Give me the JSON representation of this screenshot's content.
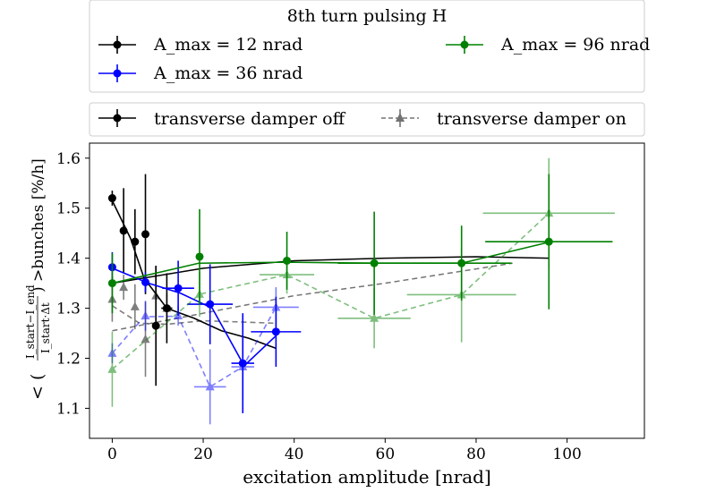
{
  "chart_data": {
    "type": "scatter",
    "xlabel": "excitation amplitude [nrad]",
    "ylabel_main": "< (",
    "ylabel_frac_num": "I_start−I_end",
    "ylabel_frac_den": "I_start·Δt",
    "ylabel_tail": ") >bunches [%/h]",
    "xlim": [
      -5,
      117
    ],
    "ylim": [
      1.04,
      1.63
    ],
    "xticks": [
      0,
      20,
      40,
      60,
      80,
      100
    ],
    "yticks": [
      1.1,
      1.2,
      1.3,
      1.4,
      1.5,
      1.6
    ],
    "xtick_labels": [
      "0",
      "20",
      "40",
      "60",
      "80",
      "100"
    ],
    "ytick_labels": [
      "1.1",
      "1.2",
      "1.3",
      "1.4",
      "1.5",
      "1.6"
    ],
    "legend1": {
      "title": "8th turn pulsing H",
      "entries": [
        "A_max = 12 nrad",
        "A_max = 36 nrad",
        "A_max = 96 nrad"
      ]
    },
    "legend2": {
      "entries": [
        "transverse damper off",
        "transverse damper on"
      ]
    },
    "series": [
      {
        "name": "A_max = 12 nrad",
        "color": "#000000",
        "damper": "off",
        "points": [
          {
            "x": 0,
            "y": 1.52,
            "xerr": 0,
            "yerr": 0.015
          },
          {
            "x": 2.5,
            "y": 1.455,
            "xerr": 0,
            "yerr": 0.085
          },
          {
            "x": 5,
            "y": 1.433,
            "xerr": 0,
            "yerr": 0.065
          },
          {
            "x": 7.3,
            "y": 1.448,
            "xerr": 0,
            "yerr": 0.12
          },
          {
            "x": 9.6,
            "y": 1.265,
            "xerr": 0,
            "yerr": 0.12
          },
          {
            "x": 12,
            "y": 1.3,
            "xerr": 1.2,
            "yerr": 0.07
          }
        ],
        "fit": [
          [
            0,
            1.515
          ],
          [
            4,
            1.44
          ],
          [
            7,
            1.36
          ],
          [
            12,
            1.3
          ],
          [
            18,
            1.28
          ],
          [
            24,
            1.255
          ],
          [
            30,
            1.24
          ],
          [
            36,
            1.22
          ]
        ]
      },
      {
        "name": "A_max = 12 nrad",
        "color": "#000000",
        "damper": "on",
        "points": [
          {
            "x": 0,
            "y": 1.318,
            "xerr": 0,
            "yerr": 0.045
          },
          {
            "x": 2.5,
            "y": 1.342,
            "xerr": 0,
            "yerr": 0.025
          },
          {
            "x": 5,
            "y": 1.303,
            "xerr": 0,
            "yerr": 0.045
          },
          {
            "x": 7.3,
            "y": 1.238,
            "xerr": 0,
            "yerr": 0.075
          },
          {
            "x": 9.6,
            "y": 1.325,
            "xerr": 0,
            "yerr": 0.06
          },
          {
            "x": 12,
            "y": 1.3,
            "xerr": 1.2,
            "yerr": 0.03
          }
        ],
        "fit": [
          [
            0,
            1.305
          ],
          [
            6,
            1.27
          ],
          [
            12,
            1.268
          ],
          [
            20,
            1.275
          ],
          [
            30,
            1.272
          ],
          [
            36,
            1.27
          ]
        ]
      },
      {
        "name": "A_max = 36 nrad",
        "color": "#0000ff",
        "damper": "off",
        "points": [
          {
            "x": 0,
            "y": 1.382,
            "xerr": 0,
            "yerr": 0.03
          },
          {
            "x": 7.3,
            "y": 1.352,
            "xerr": 0,
            "yerr": 0.02
          },
          {
            "x": 14.5,
            "y": 1.34,
            "xerr": 3.5,
            "yerr": 0.055
          },
          {
            "x": 21.5,
            "y": 1.308,
            "xerr": 5,
            "yerr": 0.08
          },
          {
            "x": 28.7,
            "y": 1.19,
            "xerr": 2.5,
            "yerr": 0.1
          },
          {
            "x": 36,
            "y": 1.253,
            "xerr": 5.5,
            "yerr": 0.07
          }
        ],
        "fit": [
          [
            0,
            1.38
          ],
          [
            8,
            1.35
          ],
          [
            15,
            1.33
          ],
          [
            22,
            1.3
          ],
          [
            29,
            1.185
          ],
          [
            36,
            1.245
          ]
        ]
      },
      {
        "name": "A_max = 36 nrad",
        "color": "#0000ff",
        "damper": "on",
        "points": [
          {
            "x": 0,
            "y": 1.21,
            "xerr": 0,
            "yerr": 0.02
          },
          {
            "x": 7.3,
            "y": 1.285,
            "xerr": 0,
            "yerr": 0.03
          },
          {
            "x": 14.5,
            "y": 1.285,
            "xerr": 0,
            "yerr": 0.02
          },
          {
            "x": 21.5,
            "y": 1.143,
            "xerr": 3.5,
            "yerr": 0.075
          },
          {
            "x": 28.7,
            "y": 1.183,
            "xerr": 2.5,
            "yerr": 0.065
          },
          {
            "x": 36,
            "y": 1.302,
            "xerr": 5,
            "yerr": 0.04
          }
        ],
        "fit": [
          [
            0,
            1.21
          ],
          [
            7,
            1.283
          ],
          [
            14.5,
            1.284
          ],
          [
            21.5,
            1.143
          ],
          [
            28.7,
            1.183
          ],
          [
            36,
            1.302
          ]
        ]
      },
      {
        "name": "A_max = 96 nrad",
        "color": "#008000",
        "damper": "off",
        "points": [
          {
            "x": 0,
            "y": 1.35,
            "xerr": 0,
            "yerr": 0.06
          },
          {
            "x": 19.2,
            "y": 1.403,
            "xerr": 0,
            "yerr": 0.095
          },
          {
            "x": 38.4,
            "y": 1.395,
            "xerr": 0,
            "yerr": 0.058
          },
          {
            "x": 57.6,
            "y": 1.39,
            "xerr": 8,
            "yerr": 0.103
          },
          {
            "x": 76.8,
            "y": 1.39,
            "xerr": 11,
            "yerr": 0.075
          },
          {
            "x": 96,
            "y": 1.433,
            "xerr": 14,
            "yerr": 0.135
          }
        ],
        "fit": [
          [
            0,
            1.35
          ],
          [
            19,
            1.39
          ],
          [
            38,
            1.392
          ],
          [
            57.6,
            1.39
          ],
          [
            76.8,
            1.39
          ],
          [
            96,
            1.432
          ]
        ]
      },
      {
        "name": "A_max = 96 nrad",
        "color": "#008000",
        "damper": "on",
        "points": [
          {
            "x": 0,
            "y": 1.178,
            "xerr": 0,
            "yerr": 0.075
          },
          {
            "x": 19.2,
            "y": 1.328,
            "xerr": 0,
            "yerr": 0.045
          },
          {
            "x": 38.4,
            "y": 1.367,
            "xerr": 6,
            "yerr": 0.038
          },
          {
            "x": 57.6,
            "y": 1.28,
            "xerr": 8,
            "yerr": 0.06
          },
          {
            "x": 76.8,
            "y": 1.327,
            "xerr": 12,
            "yerr": 0.095
          },
          {
            "x": 96,
            "y": 1.49,
            "xerr": 14.5,
            "yerr": 0.11
          }
        ],
        "fit": [
          [
            0,
            1.178
          ],
          [
            19.2,
            1.328
          ],
          [
            38.4,
            1.367
          ],
          [
            57.6,
            1.28
          ],
          [
            76.8,
            1.327
          ],
          [
            96,
            1.49
          ]
        ]
      }
    ],
    "trend_lines": [
      {
        "color": "#000000",
        "style": "solid",
        "points": [
          [
            0,
            1.35
          ],
          [
            20,
            1.38
          ],
          [
            40,
            1.395
          ],
          [
            60,
            1.4
          ],
          [
            80,
            1.403
          ],
          [
            96,
            1.4
          ]
        ]
      },
      {
        "color": "#000000",
        "style": "dashed",
        "points": [
          [
            0,
            1.255
          ],
          [
            20,
            1.29
          ],
          [
            40,
            1.325
          ],
          [
            60,
            1.35
          ],
          [
            88,
            1.39
          ]
        ]
      }
    ]
  }
}
